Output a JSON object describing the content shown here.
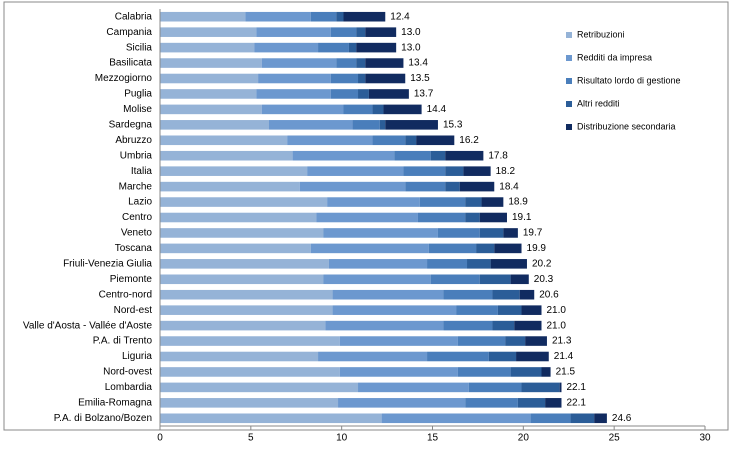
{
  "chart_data": {
    "type": "stacked-bar-horizontal",
    "categories": [
      "Calabria",
      "Campania",
      "Sicilia",
      "Basilicata",
      "Mezzogiorno",
      "Puglia",
      "Molise",
      "Sardegna",
      "Abruzzo",
      "Umbria",
      "Italia",
      "Marche",
      "Lazio",
      "Centro",
      "Veneto",
      "Toscana",
      "Friuli-Venezia Giulia",
      "Piemonte",
      "Centro-nord",
      "Nord-est",
      "Valle d'Aosta - Vallée d'Aoste",
      "P.A. di Trento",
      "Liguria",
      "Nord-ovest",
      "Lombardia",
      "Emilia-Romagna",
      "P.A. di Bolzano/Bozen"
    ],
    "series": [
      {
        "name": "Retribuzioni",
        "color": "#95b3d7",
        "values": [
          4.7,
          5.3,
          5.2,
          5.6,
          5.4,
          5.3,
          5.6,
          6.0,
          7.0,
          7.3,
          8.1,
          7.7,
          9.2,
          8.6,
          9.0,
          8.3,
          9.3,
          9.0,
          9.5,
          9.5,
          9.1,
          9.9,
          8.7,
          9.9,
          10.9,
          9.8,
          12.2
        ]
      },
      {
        "name": "Redditi da impresa",
        "color": "#6c98cf",
        "values": [
          3.6,
          4.1,
          3.5,
          4.1,
          4.0,
          4.1,
          4.5,
          4.6,
          4.7,
          5.6,
          5.3,
          5.8,
          5.1,
          5.6,
          6.3,
          6.5,
          5.4,
          5.9,
          6.1,
          6.8,
          6.5,
          6.5,
          6.0,
          6.5,
          6.1,
          7.0,
          8.2
        ]
      },
      {
        "name": "Risultato lordo di gestione",
        "color": "#4a7ebb",
        "values": [
          1.4,
          1.4,
          1.7,
          1.1,
          1.5,
          1.5,
          1.6,
          1.5,
          1.8,
          2.0,
          2.3,
          2.2,
          2.5,
          2.6,
          2.3,
          2.6,
          2.2,
          2.7,
          2.7,
          2.3,
          2.7,
          2.6,
          3.4,
          2.9,
          2.9,
          2.9,
          2.2
        ]
      },
      {
        "name": "Altri redditi",
        "color": "#2b5d98",
        "values": [
          0.4,
          0.5,
          0.4,
          0.5,
          0.4,
          0.6,
          0.6,
          0.3,
          0.6,
          0.8,
          1.0,
          0.8,
          0.9,
          0.8,
          1.3,
          1.0,
          1.3,
          1.7,
          1.5,
          1.3,
          1.2,
          1.1,
          1.5,
          1.7,
          2.1,
          1.5,
          1.3
        ]
      },
      {
        "name": "Distribuzione secondaria",
        "color": "#112b60",
        "values": [
          2.3,
          1.7,
          2.2,
          2.1,
          2.2,
          2.2,
          2.1,
          2.9,
          2.1,
          2.1,
          1.5,
          1.9,
          1.2,
          1.5,
          0.8,
          1.5,
          2.0,
          1.0,
          0.8,
          1.1,
          1.5,
          1.2,
          1.8,
          0.5,
          0.1,
          0.9,
          0.7
        ]
      }
    ],
    "totals": [
      12.4,
      13.0,
      13.0,
      13.4,
      13.5,
      13.7,
      14.4,
      15.3,
      16.2,
      17.8,
      18.2,
      18.4,
      18.9,
      19.1,
      19.7,
      19.9,
      20.2,
      20.3,
      20.6,
      21.0,
      21.0,
      21.3,
      21.4,
      21.5,
      22.1,
      22.1,
      24.6
    ],
    "total_labels": [
      "12.4",
      "13.0",
      "13.0",
      "13.4",
      "13.5",
      "13.7",
      "14.4",
      "15.3",
      "16.2",
      "17.8",
      "18.2",
      "18.4",
      "18.9",
      "19.1",
      "19.7",
      "19.9",
      "20.2",
      "20.3",
      "20.6",
      "21.0",
      "21.0",
      "21.3",
      "21.4",
      "21.5",
      "22.1",
      "22.1",
      "24.6"
    ],
    "xlim": [
      0,
      30
    ],
    "xticks": [
      0,
      5,
      10,
      15,
      20,
      25,
      30
    ]
  }
}
